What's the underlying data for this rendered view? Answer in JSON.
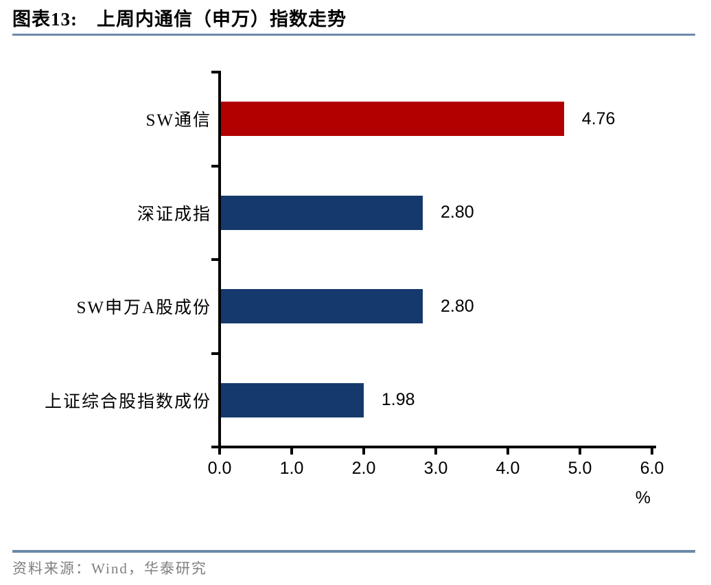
{
  "header": {
    "title": "图表13:　上周内通信（申万）指数走势"
  },
  "chart_data": {
    "type": "bar",
    "orientation": "horizontal",
    "title": "图表13:　上周内通信（申万）指数走势",
    "categories": [
      "SW通信",
      "深证成指",
      "SW申万A股成份",
      "上证综合股指数成份"
    ],
    "values": [
      4.76,
      2.8,
      2.8,
      1.98
    ],
    "value_labels": [
      "4.76",
      "2.80",
      "2.80",
      "1.98"
    ],
    "bar_colors": [
      "#B20000",
      "#15396C",
      "#15396C",
      "#15396C"
    ],
    "xlabel": "%",
    "xlim": [
      0,
      6
    ],
    "x_ticks": [
      "0.0",
      "1.0",
      "2.0",
      "3.0",
      "4.0",
      "5.0",
      "6.0"
    ],
    "grid": false,
    "legend": "none"
  },
  "footer": {
    "source": "资料来源：Wind，华泰研究"
  },
  "colors": {
    "accent_rule": "#6D89A9",
    "bar_red": "#B20000",
    "bar_blue": "#15396C",
    "axis": "#000000",
    "source_text": "#7F7F7F"
  }
}
